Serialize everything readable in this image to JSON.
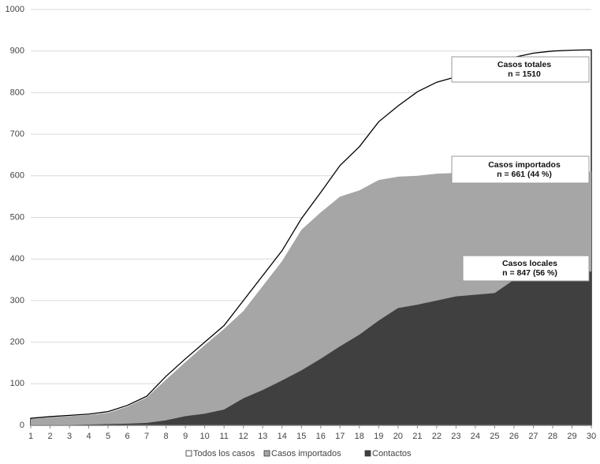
{
  "chart_data": {
    "type": "area",
    "x": [
      1,
      2,
      3,
      4,
      5,
      6,
      7,
      8,
      9,
      10,
      11,
      12,
      13,
      14,
      15,
      16,
      17,
      18,
      19,
      20,
      21,
      22,
      23,
      24,
      25,
      26,
      27,
      28,
      29,
      30
    ],
    "xlim": [
      1,
      30
    ],
    "xticks": [
      1,
      2,
      3,
      4,
      5,
      6,
      7,
      8,
      9,
      10,
      11,
      12,
      13,
      14,
      15,
      16,
      17,
      18,
      19,
      20,
      21,
      22,
      23,
      24,
      25,
      26,
      27,
      28,
      29,
      30
    ],
    "ylim": [
      0,
      1000
    ],
    "yticks": [
      0,
      100,
      200,
      300,
      400,
      500,
      600,
      700,
      800,
      900,
      1000
    ],
    "grid": true,
    "legend": "bottom",
    "series": [
      {
        "name": "Todos los casos",
        "color": "#ffffff",
        "values": [
          17,
          21,
          24,
          27,
          33,
          48,
          70,
          118,
          160,
          200,
          240,
          300,
          360,
          420,
          497,
          560,
          625,
          670,
          730,
          768,
          802,
          825,
          838,
          855,
          870,
          885,
          895,
          900,
          902,
          903
        ]
      },
      {
        "name": "Casos importados",
        "color": "#a6a6a6",
        "values": [
          15,
          19,
          22,
          25,
          30,
          45,
          67,
          110,
          152,
          193,
          232,
          275,
          335,
          395,
          470,
          512,
          550,
          565,
          590,
          598,
          600,
          605,
          607,
          608,
          608,
          609,
          610,
          610,
          610,
          610
        ]
      },
      {
        "name": "Contactos",
        "color": "#404040",
        "values": [
          0,
          0,
          1,
          2,
          3,
          4,
          6,
          12,
          22,
          28,
          38,
          65,
          85,
          108,
          132,
          160,
          190,
          218,
          252,
          282,
          290,
          300,
          310,
          314,
          318,
          350,
          360,
          365,
          368,
          370
        ]
      }
    ],
    "annotations": [
      {
        "title": "Casos totales",
        "text": "n = 1510"
      },
      {
        "title": "Casos importados",
        "text": "n = 661 (44 %)"
      },
      {
        "title": "Casos locales",
        "text": "n = 847 (56 %)"
      }
    ]
  }
}
